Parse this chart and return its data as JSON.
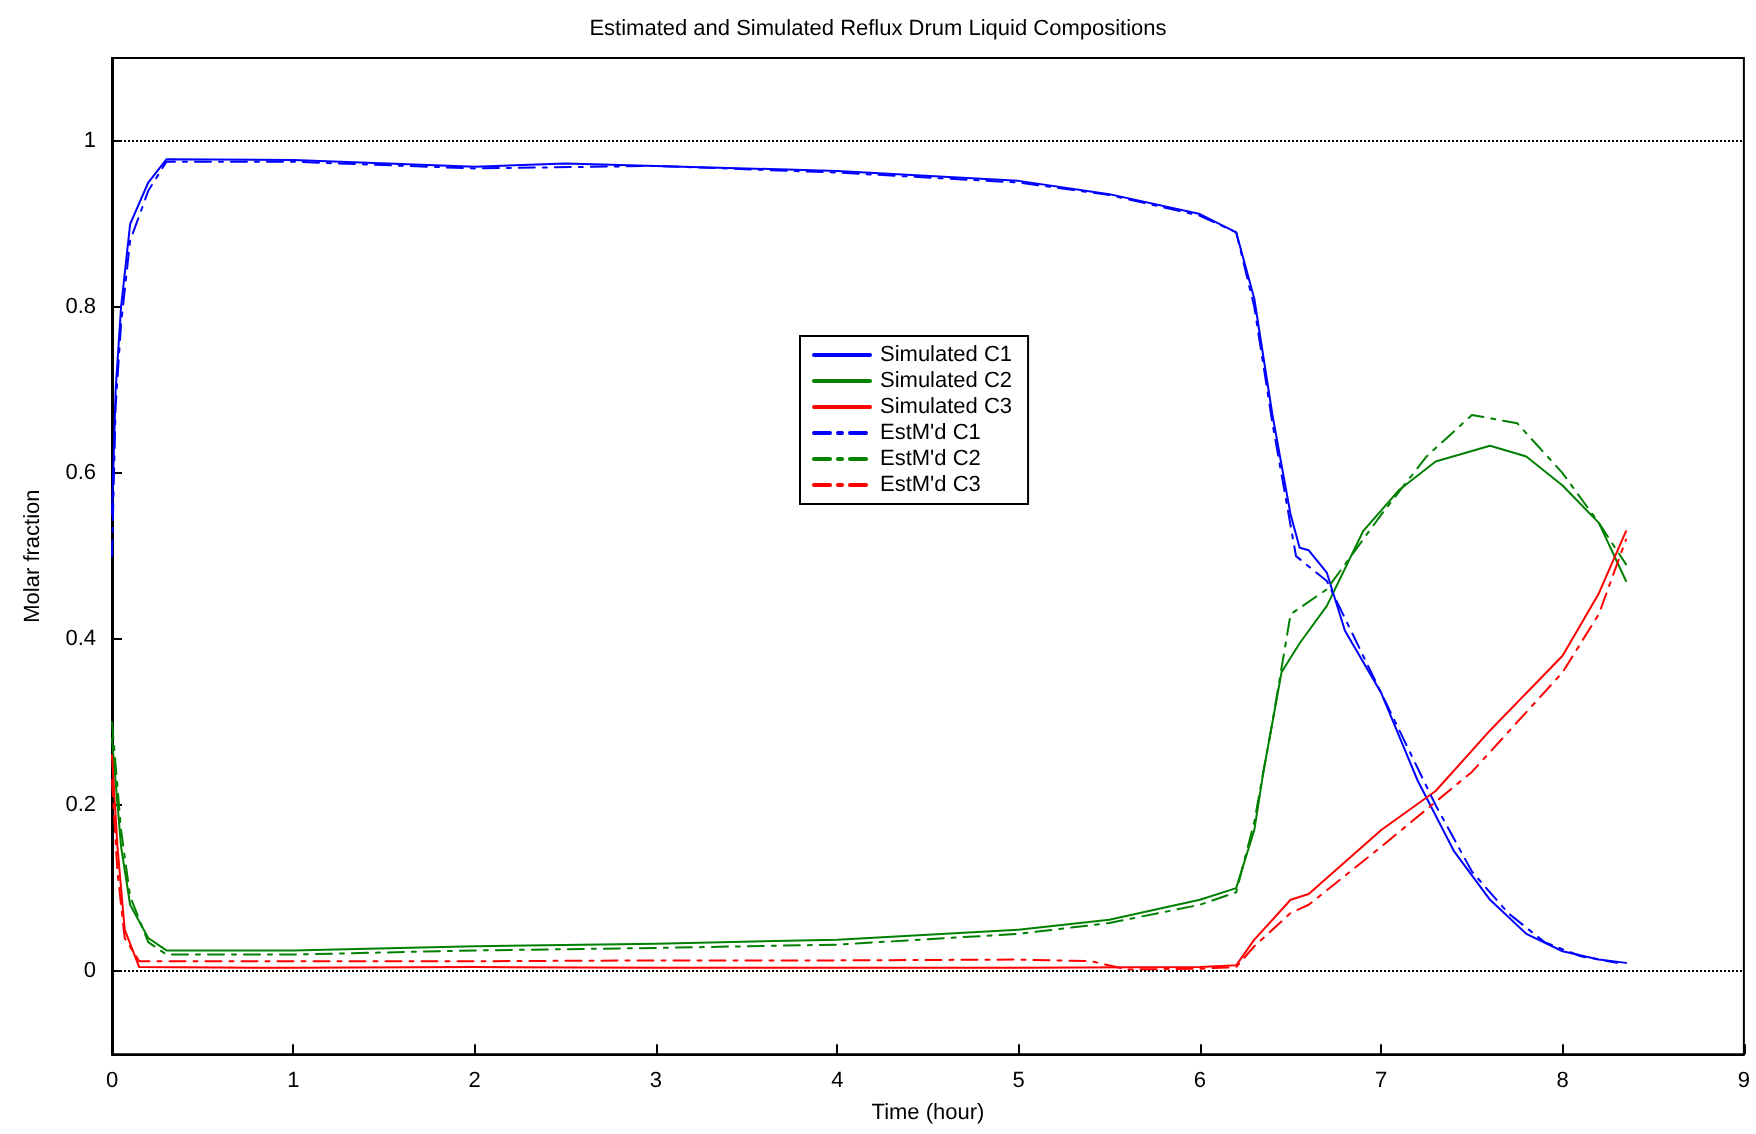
{
  "chart_data": {
    "type": "line",
    "title": "Estimated and Simulated Reflux Drum Liquid Compositions",
    "xlabel": "Time (hour)",
    "ylabel": "Molar fraction",
    "xlim": [
      0,
      9
    ],
    "xticks": [
      0,
      1,
      2,
      3,
      4,
      5,
      6,
      7,
      8,
      9
    ],
    "ylim": [
      -0.1,
      1.1
    ],
    "yticks": [
      0,
      0.2,
      0.4,
      0.6,
      0.8,
      1
    ],
    "grid": false,
    "legend": "center",
    "marker": "none",
    "ref_lines": [
      {
        "axis": "y",
        "value": 1,
        "color": "#000000",
        "line_style": "dotted"
      },
      {
        "axis": "y",
        "value": 0,
        "color": "#000000",
        "line_style": "dotted"
      }
    ],
    "series": [
      {
        "name": "Simulated C1",
        "color": "#0000ff",
        "line_style": "solid",
        "x": [
          0,
          0.02,
          0.05,
          0.1,
          0.2,
          0.3,
          1,
          2,
          2.5,
          3,
          4,
          5,
          5.5,
          6,
          6.2,
          6.3,
          6.4,
          6.5,
          6.55,
          6.6,
          6.7,
          6.8,
          7,
          7.2,
          7.4,
          7.6,
          7.8,
          8,
          8.2,
          8.35
        ],
        "values": [
          0.55,
          0.7,
          0.8,
          0.9,
          0.95,
          0.978,
          0.977,
          0.969,
          0.973,
          0.97,
          0.964,
          0.952,
          0.936,
          0.912,
          0.89,
          0.81,
          0.67,
          0.55,
          0.51,
          0.507,
          0.48,
          0.41,
          0.335,
          0.23,
          0.145,
          0.086,
          0.045,
          0.024,
          0.014,
          0.01
        ]
      },
      {
        "name": "Simulated C2",
        "color": "#008000",
        "line_style": "solid",
        "x": [
          0,
          0.05,
          0.1,
          0.2,
          0.3,
          1,
          2,
          3,
          4,
          5,
          5.5,
          6,
          6.2,
          6.3,
          6.35,
          6.45,
          6.55,
          6.7,
          6.9,
          7.1,
          7.3,
          7.6,
          7.8,
          8,
          8.2,
          8.35
        ],
        "values": [
          0.28,
          0.15,
          0.08,
          0.04,
          0.025,
          0.025,
          0.03,
          0.033,
          0.038,
          0.05,
          0.062,
          0.086,
          0.1,
          0.17,
          0.24,
          0.36,
          0.395,
          0.44,
          0.53,
          0.58,
          0.614,
          0.633,
          0.62,
          0.585,
          0.54,
          0.47
        ]
      },
      {
        "name": "Simulated C3",
        "color": "#ff0000",
        "line_style": "solid",
        "x": [
          0,
          0.03,
          0.07,
          0.15,
          1,
          2,
          3,
          4,
          5,
          6,
          6.2,
          6.3,
          6.5,
          6.6,
          7,
          7.3,
          7.6,
          8,
          8.2,
          8.35
        ],
        "values": [
          0.26,
          0.15,
          0.05,
          0.005,
          0.004,
          0.005,
          0.004,
          0.004,
          0.004,
          0.005,
          0.007,
          0.038,
          0.086,
          0.093,
          0.17,
          0.217,
          0.29,
          0.38,
          0.455,
          0.53
        ]
      },
      {
        "name": "EstM'd C1",
        "color": "#0000ff",
        "line_style": "dashed",
        "x": [
          0,
          0.02,
          0.05,
          0.1,
          0.2,
          0.3,
          1,
          2,
          3,
          4,
          5,
          5.5,
          6,
          6.2,
          6.3,
          6.4,
          6.53,
          6.7,
          6.9,
          7.1,
          7.3,
          7.5,
          7.7,
          7.9,
          8.1,
          8.3
        ],
        "values": [
          0.5,
          0.68,
          0.78,
          0.88,
          0.94,
          0.975,
          0.975,
          0.967,
          0.97,
          0.962,
          0.95,
          0.935,
          0.91,
          0.89,
          0.8,
          0.66,
          0.5,
          0.47,
          0.38,
          0.29,
          0.2,
          0.12,
          0.07,
          0.035,
          0.018,
          0.01
        ]
      },
      {
        "name": "EstM'd C2",
        "color": "#008000",
        "line_style": "dashed",
        "x": [
          0,
          0.05,
          0.1,
          0.2,
          0.3,
          1,
          2,
          3,
          4,
          5,
          5.5,
          6,
          6.2,
          6.3,
          6.4,
          6.5,
          6.7,
          7,
          7.25,
          7.5,
          7.75,
          8,
          8.2,
          8.35
        ],
        "values": [
          0.3,
          0.17,
          0.09,
          0.035,
          0.02,
          0.02,
          0.025,
          0.028,
          0.032,
          0.045,
          0.058,
          0.08,
          0.095,
          0.18,
          0.3,
          0.43,
          0.46,
          0.55,
          0.62,
          0.67,
          0.66,
          0.6,
          0.54,
          0.49
        ]
      },
      {
        "name": "EstM'd C3",
        "color": "#ff0000",
        "line_style": "dashed",
        "x": [
          0,
          0.03,
          0.07,
          0.15,
          1,
          2,
          3,
          4,
          5,
          5.4,
          5.6,
          6,
          6.2,
          6.3,
          6.5,
          6.6,
          7,
          7.5,
          8,
          8.2,
          8.35
        ],
        "values": [
          0.23,
          0.12,
          0.04,
          0.012,
          0.012,
          0.012,
          0.013,
          0.013,
          0.014,
          0.012,
          0.002,
          0.003,
          0.005,
          0.03,
          0.07,
          0.08,
          0.15,
          0.24,
          0.36,
          0.43,
          0.52
        ]
      }
    ]
  }
}
